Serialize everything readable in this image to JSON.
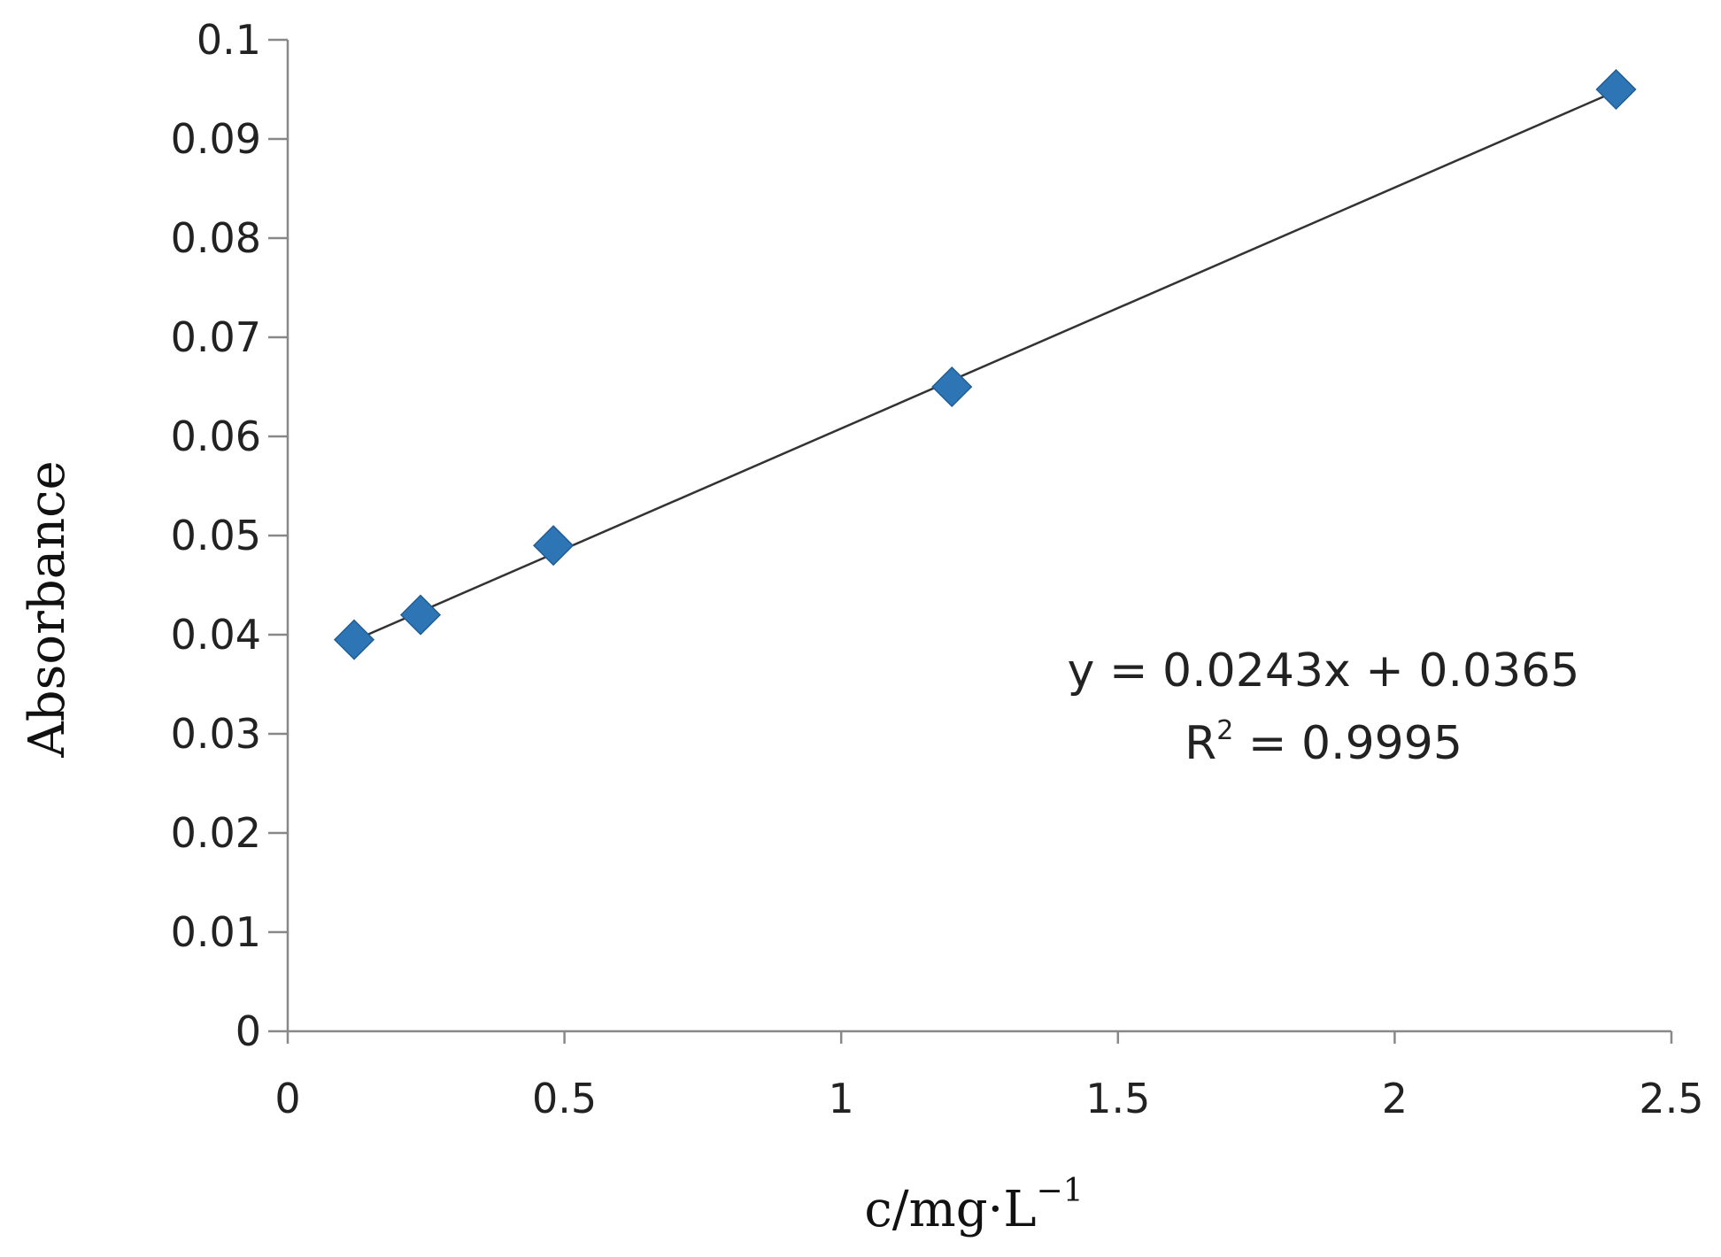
{
  "chart_data": {
    "type": "scatter",
    "title": "",
    "xlabel": "c/mg·L",
    "xlabel_sup": "−1",
    "ylabel": "Absorbance",
    "xlim": [
      0,
      2.5
    ],
    "ylim": [
      0,
      0.1
    ],
    "x_ticks": [
      "0",
      "0.5",
      "1",
      "1.5",
      "2",
      "2.5"
    ],
    "y_ticks": [
      "0",
      "0.01",
      "0.02",
      "0.03",
      "0.04",
      "0.05",
      "0.06",
      "0.07",
      "0.08",
      "0.09",
      "0.1"
    ],
    "grid": false,
    "marker": "diamond",
    "colors": {
      "marker": "#2E75B6",
      "trendline": "#333333",
      "axis": "#888888"
    },
    "series": [
      {
        "x": [
          0.12,
          0.24,
          0.48,
          1.2,
          2.4
        ],
        "y": [
          0.0395,
          0.042,
          0.049,
          0.065,
          0.095
        ]
      }
    ],
    "trendline": {
      "type": "linear",
      "slope": 0.0243,
      "intercept": 0.0365,
      "x_range": [
        0.12,
        2.4
      ]
    },
    "annotations": {
      "equation": "y = 0.0243x + 0.0365",
      "r2_prefix": "R",
      "r2_sup": "2",
      "r2_value": " = 0.9995"
    }
  }
}
